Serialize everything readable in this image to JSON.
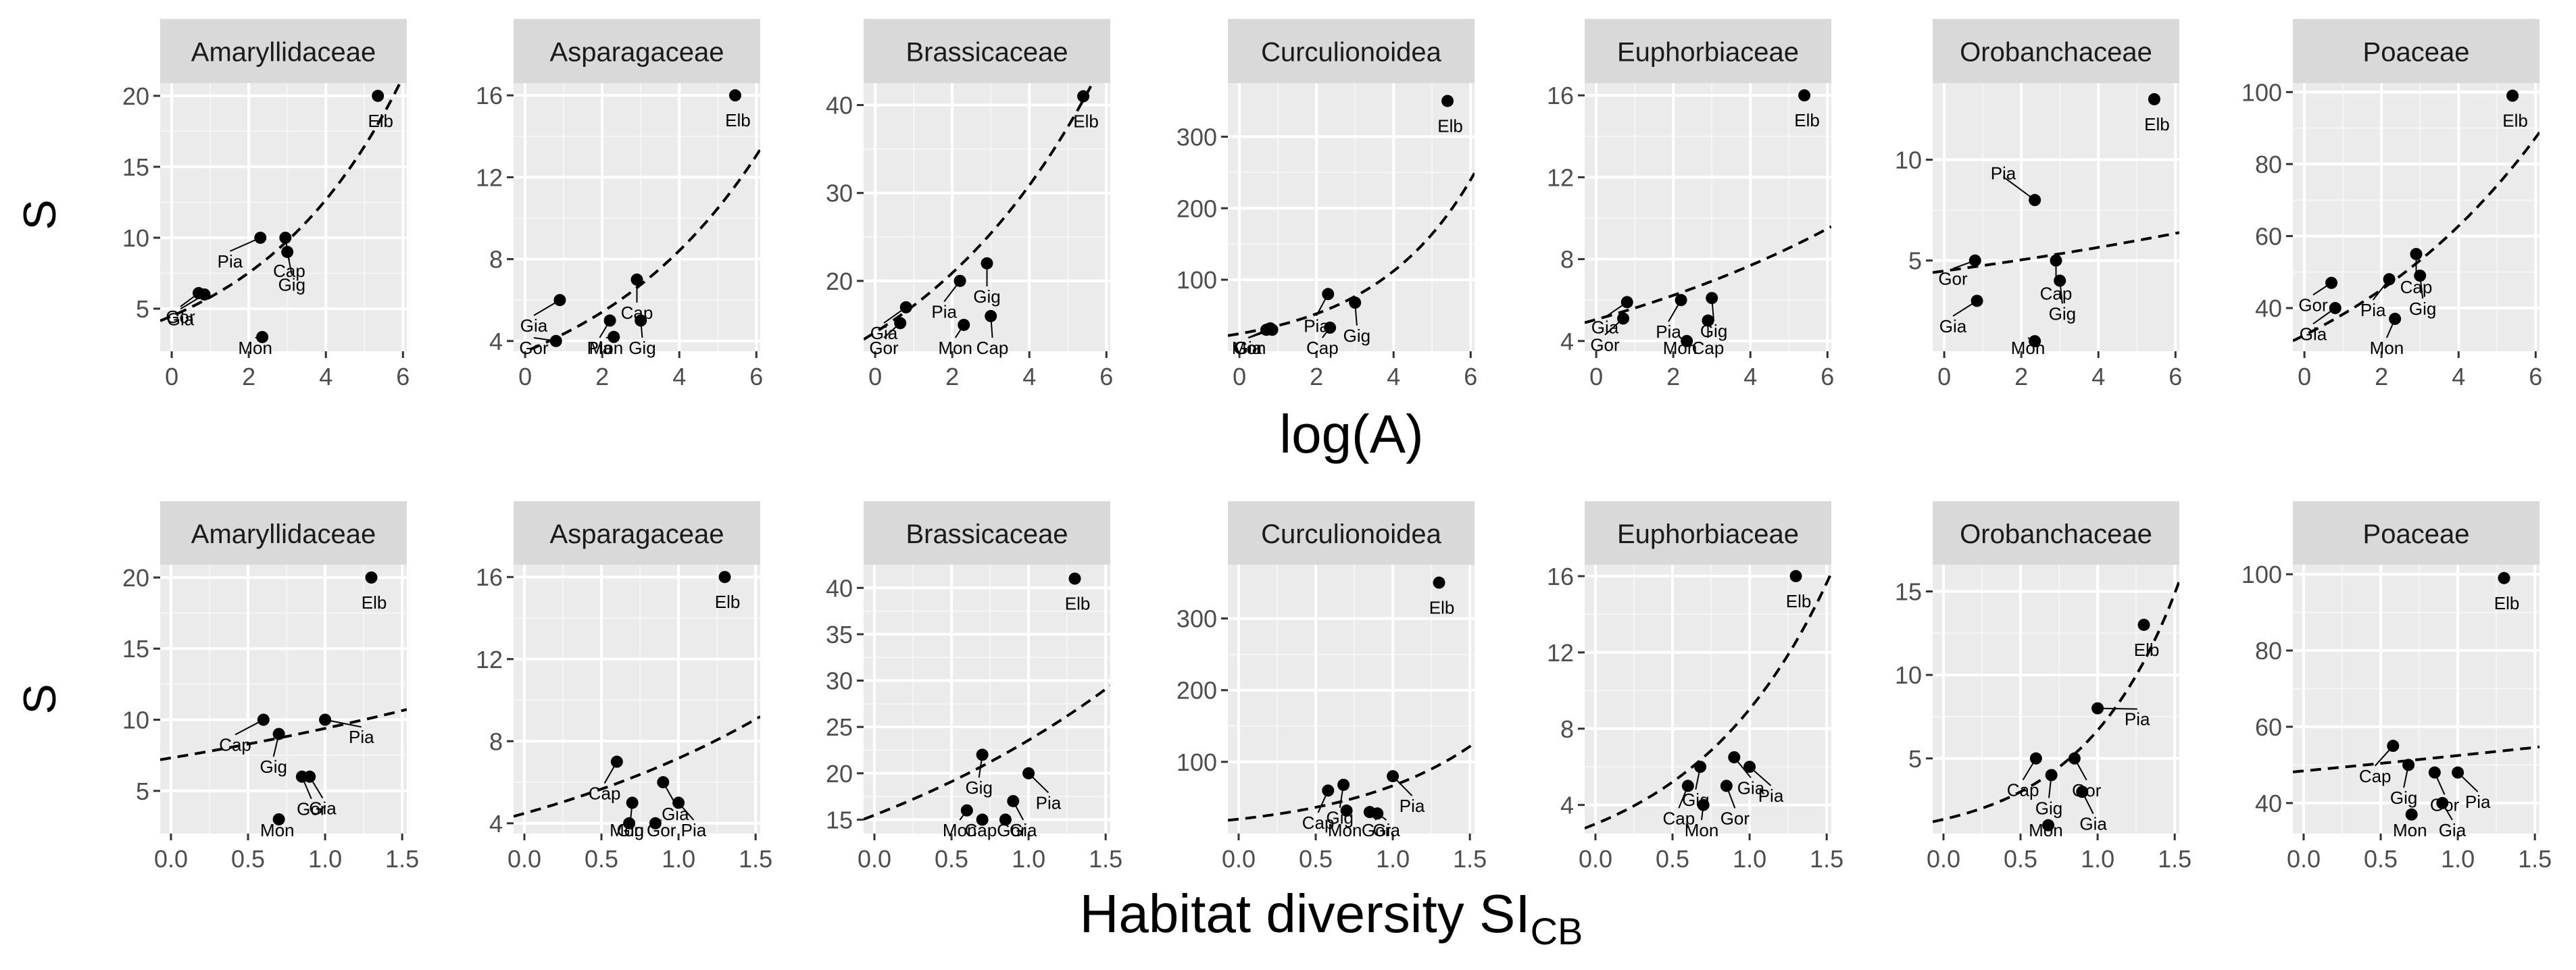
{
  "figure": {
    "row1_xlabel": "log(A)",
    "row2_xlabel_main": "Habitat diversity SI",
    "row2_xlabel_sub": "CB",
    "ylabel": "S"
  },
  "colors": {
    "strip_bg": "#d9d9d9",
    "panel_bg": "#ebebeb",
    "grid_major": "#ffffff",
    "point": "#000000",
    "text": "#000000",
    "axis_text": "#4d4d4d"
  },
  "chart_data": [
    {
      "type": "scatter",
      "row": 1,
      "col": 0,
      "title": "Amaryllidaceae",
      "xlabel": "log(A)",
      "ylabel": "S",
      "xlim": [
        -0.3,
        6.1
      ],
      "ylim": [
        2,
        20.9
      ],
      "xticks": [
        0,
        2,
        4,
        6
      ],
      "yticks": [
        5,
        10,
        15,
        20
      ],
      "points": [
        {
          "label": "Elb",
          "x": 5.35,
          "y": 20
        },
        {
          "label": "Gor",
          "x": 0.7,
          "y": 6.1
        },
        {
          "label": "Gia",
          "x": 0.85,
          "y": 6
        },
        {
          "label": "Pia",
          "x": 2.3,
          "y": 10
        },
        {
          "label": "Cap",
          "x": 2.95,
          "y": 10
        },
        {
          "label": "Gig",
          "x": 3.0,
          "y": 9
        },
        {
          "label": "Mon",
          "x": 2.35,
          "y": 3
        }
      ],
      "fit": {
        "a": 1.5,
        "b": 0.26
      }
    },
    {
      "type": "scatter",
      "row": 1,
      "col": 1,
      "title": "Asparagaceae",
      "xlabel": "log(A)",
      "ylabel": "S",
      "xlim": [
        -0.3,
        6.1
      ],
      "ylim": [
        3.5,
        16.6
      ],
      "xticks": [
        0,
        2,
        4,
        6
      ],
      "yticks": [
        4,
        8,
        12,
        16
      ],
      "points": [
        {
          "label": "Elb",
          "x": 5.45,
          "y": 16
        },
        {
          "label": "Gia",
          "x": 0.9,
          "y": 6
        },
        {
          "label": "Gor",
          "x": 0.8,
          "y": 4
        },
        {
          "label": "Pia",
          "x": 2.2,
          "y": 5
        },
        {
          "label": "Cap",
          "x": 2.9,
          "y": 7
        },
        {
          "label": "Gig",
          "x": 3.0,
          "y": 5
        },
        {
          "label": "Mon",
          "x": 2.3,
          "y": 4.2
        }
      ],
      "fit": {
        "a": 1.25,
        "b": 0.22
      }
    },
    {
      "type": "scatter",
      "row": 1,
      "col": 2,
      "title": "Brassicaceae",
      "xlabel": "log(A)",
      "ylabel": "S",
      "xlim": [
        -0.3,
        6.1
      ],
      "ylim": [
        12,
        42.5
      ],
      "xticks": [
        0,
        2,
        4,
        6
      ],
      "yticks": [
        20,
        30,
        40
      ],
      "points": [
        {
          "label": "Elb",
          "x": 5.4,
          "y": 41
        },
        {
          "label": "Gia",
          "x": 0.8,
          "y": 17
        },
        {
          "label": "Gor",
          "x": 0.65,
          "y": 15.2
        },
        {
          "label": "Mon",
          "x": 2.3,
          "y": 15
        },
        {
          "label": "Pia",
          "x": 2.2,
          "y": 20
        },
        {
          "label": "Gig",
          "x": 2.9,
          "y": 22
        },
        {
          "label": "Cap",
          "x": 3.0,
          "y": 16
        }
      ],
      "fit": {
        "a": 2.65,
        "b": 0.195
      }
    },
    {
      "type": "scatter",
      "row": 1,
      "col": 3,
      "title": "Curculionoidea",
      "xlabel": "log(A)",
      "ylabel": "S",
      "xlim": [
        -0.3,
        6.1
      ],
      "ylim": [
        0,
        375
      ],
      "xticks": [
        0,
        2,
        4,
        6
      ],
      "yticks": [
        100,
        200,
        300
      ],
      "points": [
        {
          "label": "Elb",
          "x": 5.4,
          "y": 350
        },
        {
          "label": "Gor",
          "x": 0.7,
          "y": 30
        },
        {
          "label": "Mon",
          "x": 0.85,
          "y": 30
        },
        {
          "label": "Gia",
          "x": 0.8,
          "y": 32
        },
        {
          "label": "Pia",
          "x": 2.3,
          "y": 80
        },
        {
          "label": "Cap",
          "x": 2.35,
          "y": 33
        },
        {
          "label": "Gig",
          "x": 3.0,
          "y": 68
        }
      ],
      "fit": {
        "a": 3.2,
        "b": 0.38
      }
    },
    {
      "type": "scatter",
      "row": 1,
      "col": 4,
      "title": "Euphorbiaceae",
      "xlabel": "log(A)",
      "ylabel": "S",
      "xlim": [
        -0.3,
        6.1
      ],
      "ylim": [
        3.5,
        16.6
      ],
      "xticks": [
        0,
        2,
        4,
        6
      ],
      "yticks": [
        4,
        8,
        12,
        16
      ],
      "points": [
        {
          "label": "Elb",
          "x": 5.4,
          "y": 16
        },
        {
          "label": "Gia",
          "x": 0.8,
          "y": 5.9
        },
        {
          "label": "Gor",
          "x": 0.7,
          "y": 5.1
        },
        {
          "label": "Pia",
          "x": 2.2,
          "y": 6
        },
        {
          "label": "Gig",
          "x": 3.0,
          "y": 6.1
        },
        {
          "label": "Mon",
          "x": 2.35,
          "y": 4
        },
        {
          "label": "Cap",
          "x": 2.9,
          "y": 5
        }
      ],
      "fit": {
        "a": 1.62,
        "b": 0.105
      }
    },
    {
      "type": "scatter",
      "row": 1,
      "col": 5,
      "title": "Orobanchaceae",
      "xlabel": "log(A)",
      "ylabel": "S",
      "xlim": [
        -0.3,
        6.1
      ],
      "ylim": [
        0.5,
        13.8
      ],
      "xticks": [
        0,
        2,
        4,
        6
      ],
      "yticks": [
        5,
        10
      ],
      "points": [
        {
          "label": "Elb",
          "x": 5.45,
          "y": 13
        },
        {
          "label": "Pia",
          "x": 2.35,
          "y": 8
        },
        {
          "label": "Gor",
          "x": 0.8,
          "y": 5
        },
        {
          "label": "Cap",
          "x": 2.9,
          "y": 5
        },
        {
          "label": "Gia",
          "x": 0.85,
          "y": 3
        },
        {
          "label": "Gig",
          "x": 3.0,
          "y": 4
        },
        {
          "label": "Mon",
          "x": 2.35,
          "y": 1
        }
      ],
      "fit": {
        "a": 1.5,
        "b": 0.058
      }
    },
    {
      "type": "scatter",
      "row": 1,
      "col": 6,
      "title": "Poaceae",
      "xlabel": "log(A)",
      "ylabel": "S",
      "xlim": [
        -0.3,
        6.1
      ],
      "ylim": [
        28,
        102.5
      ],
      "xticks": [
        0,
        2,
        4,
        6
      ],
      "yticks": [
        40,
        60,
        80,
        100
      ],
      "points": [
        {
          "label": "Elb",
          "x": 5.4,
          "y": 99
        },
        {
          "label": "Gor",
          "x": 0.7,
          "y": 47
        },
        {
          "label": "Gia",
          "x": 0.8,
          "y": 40
        },
        {
          "label": "Pia",
          "x": 2.2,
          "y": 48
        },
        {
          "label": "Cap",
          "x": 2.9,
          "y": 55
        },
        {
          "label": "Gig",
          "x": 3.0,
          "y": 49
        },
        {
          "label": "Mon",
          "x": 2.35,
          "y": 37
        }
      ],
      "fit": {
        "a": 3.48,
        "b": 0.165
      }
    },
    {
      "type": "scatter",
      "row": 2,
      "col": 0,
      "title": "Amaryllidaceae",
      "xlabel": "Habitat diversity SI CB",
      "ylabel": "S",
      "xlim": [
        -0.07,
        1.53
      ],
      "ylim": [
        2,
        20.9
      ],
      "xticks": [
        0.0,
        0.5,
        1.0,
        1.5
      ],
      "yticks": [
        5,
        10,
        15,
        20
      ],
      "points": [
        {
          "label": "Elb",
          "x": 1.3,
          "y": 20
        },
        {
          "label": "Cap",
          "x": 0.6,
          "y": 10
        },
        {
          "label": "Pia",
          "x": 1.0,
          "y": 10
        },
        {
          "label": "Gig",
          "x": 0.7,
          "y": 9
        },
        {
          "label": "Gor",
          "x": 0.85,
          "y": 6
        },
        {
          "label": "Gia",
          "x": 0.9,
          "y": 6
        },
        {
          "label": "Mon",
          "x": 0.7,
          "y": 3
        }
      ],
      "fit": {
        "a": 1.99,
        "b": 0.25
      }
    },
    {
      "type": "scatter",
      "row": 2,
      "col": 1,
      "title": "Asparagaceae",
      "xlabel": "Habitat diversity SI CB",
      "ylabel": "S",
      "xlim": [
        -0.07,
        1.53
      ],
      "ylim": [
        3.5,
        16.6
      ],
      "xticks": [
        0.0,
        0.5,
        1.0,
        1.5
      ],
      "yticks": [
        4,
        8,
        12,
        16
      ],
      "points": [
        {
          "label": "Elb",
          "x": 1.3,
          "y": 16
        },
        {
          "label": "Cap",
          "x": 0.6,
          "y": 7
        },
        {
          "label": "Gia",
          "x": 0.9,
          "y": 6
        },
        {
          "label": "Gig",
          "x": 0.7,
          "y": 5
        },
        {
          "label": "Mon",
          "x": 0.68,
          "y": 4
        },
        {
          "label": "Gor",
          "x": 0.85,
          "y": 4
        },
        {
          "label": "Pia",
          "x": 1.0,
          "y": 5
        }
      ],
      "fit": {
        "a": 1.5,
        "b": 0.47
      }
    },
    {
      "type": "scatter",
      "row": 2,
      "col": 2,
      "title": "Brassicaceae",
      "xlabel": "Habitat diversity SI CB",
      "ylabel": "S",
      "xlim": [
        -0.07,
        1.53
      ],
      "ylim": [
        13.5,
        42.5
      ],
      "xticks": [
        0.0,
        0.5,
        1.0,
        1.5
      ],
      "yticks": [
        15,
        20,
        25,
        30,
        35,
        40
      ],
      "points": [
        {
          "label": "Elb",
          "x": 1.3,
          "y": 41
        },
        {
          "label": "Gig",
          "x": 0.7,
          "y": 22
        },
        {
          "label": "Pia",
          "x": 1.0,
          "y": 20
        },
        {
          "label": "Mon",
          "x": 0.6,
          "y": 16
        },
        {
          "label": "Cap",
          "x": 0.7,
          "y": 15
        },
        {
          "label": "Gor",
          "x": 0.85,
          "y": 15
        },
        {
          "label": "Gia",
          "x": 0.9,
          "y": 17
        }
      ],
      "fit": {
        "a": 2.74,
        "b": 0.42
      }
    },
    {
      "type": "scatter",
      "row": 2,
      "col": 3,
      "title": "Curculionoidea",
      "xlabel": "Habitat diversity SI CB",
      "ylabel": "S",
      "xlim": [
        -0.07,
        1.53
      ],
      "ylim": [
        0,
        375
      ],
      "xticks": [
        0.0,
        0.5,
        1.0,
        1.5
      ],
      "yticks": [
        100,
        200,
        300
      ],
      "points": [
        {
          "label": "Elb",
          "x": 1.3,
          "y": 350
        },
        {
          "label": "Cap",
          "x": 0.58,
          "y": 60
        },
        {
          "label": "Gig",
          "x": 0.68,
          "y": 68
        },
        {
          "label": "Pia",
          "x": 1.0,
          "y": 80
        },
        {
          "label": "Mon",
          "x": 0.7,
          "y": 32
        },
        {
          "label": "Gor",
          "x": 0.85,
          "y": 30
        },
        {
          "label": "Gia",
          "x": 0.9,
          "y": 28
        }
      ],
      "fit": {
        "a": 3.0,
        "b": 1.2
      }
    },
    {
      "type": "scatter",
      "row": 2,
      "col": 4,
      "title": "Euphorbiaceae",
      "xlabel": "Habitat diversity SI CB",
      "ylabel": "S",
      "xlim": [
        -0.07,
        1.53
      ],
      "ylim": [
        2.5,
        16.6
      ],
      "xticks": [
        0.0,
        0.5,
        1.0,
        1.5
      ],
      "yticks": [
        4,
        8,
        12,
        16
      ],
      "points": [
        {
          "label": "Elb",
          "x": 1.3,
          "y": 16
        },
        {
          "label": "Gig",
          "x": 0.68,
          "y": 6
        },
        {
          "label": "Gia",
          "x": 0.9,
          "y": 6.5
        },
        {
          "label": "Pia",
          "x": 1.0,
          "y": 6
        },
        {
          "label": "Cap",
          "x": 0.6,
          "y": 5
        },
        {
          "label": "Mon",
          "x": 0.7,
          "y": 4
        },
        {
          "label": "Gor",
          "x": 0.85,
          "y": 5
        }
      ],
      "fit": {
        "a": 1.1,
        "b": 1.1
      }
    },
    {
      "type": "scatter",
      "row": 2,
      "col": 5,
      "title": "Orobanchaceae",
      "xlabel": "Habitat diversity SI CB",
      "ylabel": "S",
      "xlim": [
        -0.07,
        1.53
      ],
      "ylim": [
        0.5,
        16.6
      ],
      "xticks": [
        0.0,
        0.5,
        1.0,
        1.5
      ],
      "yticks": [
        5,
        10,
        15
      ],
      "points": [
        {
          "label": "Elb",
          "x": 1.3,
          "y": 13
        },
        {
          "label": "Pia",
          "x": 1.0,
          "y": 8
        },
        {
          "label": "Cap",
          "x": 0.6,
          "y": 5
        },
        {
          "label": "Gor",
          "x": 0.85,
          "y": 5
        },
        {
          "label": "Gig",
          "x": 0.7,
          "y": 4
        },
        {
          "label": "Mon",
          "x": 0.68,
          "y": 1
        },
        {
          "label": "Gia",
          "x": 0.9,
          "y": 3
        }
      ],
      "fit": {
        "a": 0.3,
        "b": 1.6
      }
    },
    {
      "type": "scatter",
      "row": 2,
      "col": 6,
      "title": "Poaceae",
      "xlabel": "Habitat diversity SI CB",
      "ylabel": "S",
      "xlim": [
        -0.07,
        1.53
      ],
      "ylim": [
        32,
        102.5
      ],
      "xticks": [
        0.0,
        0.5,
        1.0,
        1.5
      ],
      "yticks": [
        40,
        60,
        80,
        100
      ],
      "points": [
        {
          "label": "Elb",
          "x": 1.3,
          "y": 99
        },
        {
          "label": "Cap",
          "x": 0.58,
          "y": 55
        },
        {
          "label": "Gig",
          "x": 0.68,
          "y": 50
        },
        {
          "label": "Gor",
          "x": 0.85,
          "y": 48
        },
        {
          "label": "Pia",
          "x": 1.0,
          "y": 48
        },
        {
          "label": "Mon",
          "x": 0.7,
          "y": 37
        },
        {
          "label": "Gia",
          "x": 0.9,
          "y": 40
        }
      ],
      "fit": {
        "a": 3.88,
        "b": 0.08
      }
    }
  ]
}
